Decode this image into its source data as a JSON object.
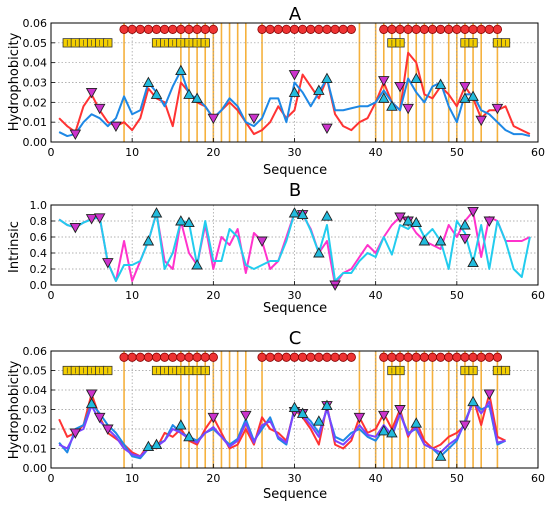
{
  "chart_data": [
    {
      "type": "line",
      "title": "A",
      "xlabel": "Sequence",
      "ylabel": "Hydrophobicity",
      "xlim": [
        0,
        60
      ],
      "ylim": [
        0,
        0.06
      ],
      "xticks": [
        "0",
        "10",
        "20",
        "30",
        "40",
        "50",
        "60"
      ],
      "yticks": [
        "0.00",
        "0.01",
        "0.02",
        "0.03",
        "0.04",
        "0.05",
        "0.06"
      ],
      "grid": true,
      "vlines": [
        9,
        16,
        17,
        18,
        19,
        20,
        21,
        22,
        23,
        24,
        26,
        38,
        40,
        41,
        42,
        43,
        44,
        45,
        46,
        47,
        49,
        50,
        51,
        52,
        53,
        55
      ],
      "helix_markers": [
        9,
        10,
        11,
        12,
        13,
        14,
        15,
        16,
        17,
        18,
        19,
        20,
        26,
        27,
        28,
        29,
        30,
        31,
        32,
        33,
        34,
        35,
        36,
        37,
        41,
        42,
        43,
        44,
        45,
        46,
        47,
        48,
        49,
        50,
        51,
        52,
        53,
        54,
        55
      ],
      "strand_markers": [
        2,
        3,
        4,
        5,
        6,
        7,
        13,
        14,
        15,
        16,
        17,
        18,
        19,
        42,
        43,
        51,
        52,
        55,
        56
      ],
      "x": [
        1,
        2,
        3,
        4,
        5,
        6,
        7,
        8,
        9,
        10,
        11,
        12,
        13,
        14,
        15,
        16,
        17,
        18,
        19,
        20,
        21,
        22,
        23,
        24,
        25,
        26,
        27,
        28,
        29,
        30,
        31,
        32,
        33,
        34,
        35,
        36,
        37,
        38,
        39,
        40,
        41,
        42,
        43,
        44,
        45,
        46,
        47,
        48,
        49,
        50,
        51,
        52,
        53,
        54,
        55,
        56,
        57,
        58,
        59
      ],
      "series": [
        {
          "color": "#ff3333",
          "values": [
            0.012,
            0.008,
            0.005,
            0.018,
            0.024,
            0.016,
            0.01,
            0.008,
            0.01,
            0.006,
            0.012,
            0.027,
            0.022,
            0.02,
            0.008,
            0.03,
            0.025,
            0.02,
            0.018,
            0.012,
            0.016,
            0.02,
            0.016,
            0.01,
            0.004,
            0.006,
            0.01,
            0.018,
            0.012,
            0.016,
            0.034,
            0.028,
            0.022,
            0.032,
            0.014,
            0.008,
            0.006,
            0.01,
            0.012,
            0.02,
            0.03,
            0.02,
            0.016,
            0.045,
            0.04,
            0.024,
            0.022,
            0.028,
            0.024,
            0.018,
            0.028,
            0.022,
            0.012,
            0.016,
            0.016,
            0.018,
            0.008,
            0.006,
            0.004
          ]
        },
        {
          "color": "#1e88e5",
          "values": [
            0.005,
            0.003,
            0.004,
            0.01,
            0.014,
            0.012,
            0.008,
            0.012,
            0.023,
            0.014,
            0.016,
            0.03,
            0.025,
            0.018,
            0.028,
            0.036,
            0.024,
            0.022,
            0.018,
            0.012,
            0.016,
            0.022,
            0.018,
            0.01,
            0.008,
            0.012,
            0.022,
            0.022,
            0.01,
            0.03,
            0.025,
            0.018,
            0.025,
            0.032,
            0.016,
            0.016,
            0.017,
            0.018,
            0.018,
            0.02,
            0.026,
            0.02,
            0.016,
            0.032,
            0.025,
            0.02,
            0.028,
            0.03,
            0.018,
            0.01,
            0.024,
            0.024,
            0.016,
            0.014,
            0.01,
            0.006,
            0.004,
            0.004,
            0.003
          ]
        }
      ],
      "down_triangles": {
        "x": [
          3,
          5,
          6,
          8,
          20,
          25,
          30,
          34,
          41,
          43,
          44,
          51,
          53,
          55
        ],
        "y": [
          0.004,
          0.025,
          0.017,
          0.008,
          0.012,
          0.012,
          0.034,
          0.007,
          0.031,
          0.028,
          0.017,
          0.028,
          0.011,
          0.017
        ]
      },
      "up_triangles": {
        "x": [
          12,
          13,
          16,
          17,
          18,
          30,
          33,
          34,
          41,
          42,
          45,
          48,
          51,
          52
        ],
        "y": [
          0.03,
          0.024,
          0.036,
          0.024,
          0.022,
          0.025,
          0.026,
          0.032,
          0.022,
          0.018,
          0.032,
          0.029,
          0.022,
          0.023
        ]
      }
    },
    {
      "type": "line",
      "title": "B",
      "xlabel": "Sequence",
      "ylabel": "Intrinsic",
      "xlim": [
        0,
        60
      ],
      "ylim": [
        0,
        1.0
      ],
      "xticks": [
        "0",
        "10",
        "20",
        "30",
        "40",
        "50",
        "60"
      ],
      "yticks": [
        "0.0",
        "0.2",
        "0.4",
        "0.6",
        "0.8",
        "1.0"
      ],
      "grid": true,
      "x": [
        1,
        2,
        3,
        4,
        5,
        6,
        7,
        8,
        9,
        10,
        11,
        12,
        13,
        14,
        15,
        16,
        17,
        18,
        19,
        20,
        21,
        22,
        23,
        24,
        25,
        26,
        27,
        28,
        29,
        30,
        31,
        32,
        33,
        34,
        35,
        36,
        37,
        38,
        39,
        40,
        41,
        42,
        43,
        44,
        45,
        46,
        47,
        48,
        49,
        50,
        51,
        52,
        53,
        54,
        55,
        56,
        57,
        58,
        59
      ],
      "series": [
        {
          "color": "#ff33cc",
          "values": [
            0.82,
            0.75,
            0.72,
            0.78,
            0.83,
            0.84,
            0.28,
            0.05,
            0.55,
            0.05,
            0.3,
            0.55,
            0.9,
            0.3,
            0.2,
            0.8,
            0.4,
            0.25,
            0.75,
            0.2,
            0.6,
            0.5,
            0.7,
            0.15,
            0.65,
            0.55,
            0.2,
            0.3,
            0.6,
            0.9,
            0.88,
            0.7,
            0.4,
            0.55,
            0.0,
            0.15,
            0.2,
            0.35,
            0.5,
            0.4,
            0.6,
            0.75,
            0.85,
            0.8,
            0.65,
            0.55,
            0.5,
            0.45,
            0.75,
            0.6,
            0.8,
            0.92,
            0.35,
            0.85,
            0.8,
            0.55,
            0.55,
            0.55,
            0.6
          ]
        },
        {
          "color": "#22ccee",
          "values": [
            0.82,
            0.75,
            0.72,
            0.78,
            0.82,
            0.85,
            0.28,
            0.05,
            0.25,
            0.25,
            0.3,
            0.55,
            0.9,
            0.2,
            0.4,
            0.8,
            0.78,
            0.25,
            0.8,
            0.3,
            0.3,
            0.7,
            0.6,
            0.25,
            0.2,
            0.25,
            0.3,
            0.3,
            0.55,
            0.9,
            0.9,
            0.68,
            0.4,
            0.75,
            0.05,
            0.15,
            0.15,
            0.3,
            0.4,
            0.35,
            0.6,
            0.38,
            0.75,
            0.7,
            0.8,
            0.6,
            0.7,
            0.55,
            0.2,
            0.8,
            0.65,
            0.28,
            0.75,
            0.2,
            0.8,
            0.55,
            0.2,
            0.1,
            0.6
          ]
        }
      ],
      "down_triangles": {
        "x": [
          3,
          5,
          6,
          7,
          26,
          31,
          35,
          43,
          44,
          51,
          52,
          54
        ],
        "y": [
          0.72,
          0.83,
          0.84,
          0.28,
          0.55,
          0.88,
          0.0,
          0.85,
          0.8,
          0.58,
          0.92,
          0.8
        ]
      },
      "up_triangles": {
        "x": [
          12,
          13,
          16,
          17,
          18,
          30,
          31,
          33,
          34,
          44,
          45,
          46,
          48,
          51,
          52
        ],
        "y": [
          0.55,
          0.9,
          0.8,
          0.78,
          0.25,
          0.9,
          0.88,
          0.4,
          0.86,
          0.8,
          0.78,
          0.55,
          0.55,
          0.75,
          0.28
        ]
      }
    },
    {
      "type": "line",
      "title": "C",
      "xlabel": "Sequence",
      "ylabel": "Hydrophobicity",
      "xlim": [
        0,
        60
      ],
      "ylim": [
        0,
        0.06
      ],
      "xticks": [
        "0",
        "10",
        "20",
        "30",
        "40",
        "50",
        "60"
      ],
      "yticks": [
        "0.00",
        "0.01",
        "0.02",
        "0.03",
        "0.04",
        "0.05",
        "0.06"
      ],
      "grid": true,
      "vlines": [
        9,
        16,
        17,
        18,
        19,
        20,
        21,
        22,
        23,
        24,
        26,
        38,
        40,
        41,
        42,
        43,
        44,
        45,
        46,
        47,
        49,
        50,
        51,
        52,
        53,
        55
      ],
      "helix_markers": [
        9,
        10,
        11,
        12,
        13,
        14,
        15,
        16,
        17,
        18,
        19,
        20,
        26,
        27,
        28,
        29,
        30,
        31,
        32,
        33,
        34,
        35,
        36,
        37,
        41,
        42,
        43,
        44,
        45,
        46,
        47,
        48,
        49,
        50,
        51,
        52,
        53,
        54,
        55
      ],
      "strand_markers": [
        2,
        3,
        4,
        5,
        6,
        7,
        13,
        14,
        15,
        16,
        17,
        18,
        19,
        42,
        43,
        51,
        52,
        55,
        56
      ],
      "x": [
        1,
        2,
        3,
        4,
        5,
        6,
        7,
        8,
        9,
        10,
        11,
        12,
        13,
        14,
        15,
        16,
        17,
        18,
        19,
        20,
        21,
        22,
        23,
        24,
        25,
        26,
        27,
        28,
        29,
        30,
        31,
        32,
        33,
        34,
        35,
        36,
        37,
        38,
        39,
        40,
        41,
        42,
        43,
        44,
        45,
        46,
        47,
        48,
        49,
        50,
        51,
        52,
        53,
        54,
        55,
        56
      ],
      "series": [
        {
          "color": "#ff3333",
          "values": [
            0.025,
            0.016,
            0.018,
            0.022,
            0.038,
            0.026,
            0.018,
            0.015,
            0.012,
            0.008,
            0.006,
            0.012,
            0.01,
            0.018,
            0.016,
            0.02,
            0.014,
            0.012,
            0.02,
            0.026,
            0.018,
            0.01,
            0.012,
            0.02,
            0.012,
            0.026,
            0.02,
            0.018,
            0.014,
            0.03,
            0.026,
            0.02,
            0.012,
            0.032,
            0.012,
            0.01,
            0.014,
            0.026,
            0.018,
            0.02,
            0.028,
            0.02,
            0.03,
            0.016,
            0.024,
            0.014,
            0.01,
            0.012,
            0.016,
            0.018,
            0.022,
            0.036,
            0.022,
            0.038,
            0.016,
            0.014
          ]
        },
        {
          "color": "#1e88e5",
          "values": [
            0.013,
            0.008,
            0.02,
            0.022,
            0.033,
            0.028,
            0.022,
            0.018,
            0.012,
            0.006,
            0.005,
            0.01,
            0.012,
            0.014,
            0.022,
            0.018,
            0.016,
            0.014,
            0.018,
            0.02,
            0.016,
            0.012,
            0.015,
            0.025,
            0.014,
            0.02,
            0.026,
            0.015,
            0.012,
            0.031,
            0.028,
            0.024,
            0.018,
            0.03,
            0.016,
            0.014,
            0.018,
            0.02,
            0.016,
            0.014,
            0.02,
            0.016,
            0.028,
            0.018,
            0.02,
            0.012,
            0.01,
            0.006,
            0.01,
            0.014,
            0.024,
            0.034,
            0.03,
            0.032,
            0.012,
            0.014
          ]
        },
        {
          "color": "#7a44ff",
          "values": [
            0.012,
            0.01,
            0.018,
            0.02,
            0.032,
            0.024,
            0.02,
            0.016,
            0.01,
            0.007,
            0.006,
            0.01,
            0.011,
            0.014,
            0.02,
            0.018,
            0.015,
            0.013,
            0.018,
            0.021,
            0.016,
            0.011,
            0.014,
            0.023,
            0.013,
            0.022,
            0.024,
            0.016,
            0.013,
            0.03,
            0.027,
            0.022,
            0.016,
            0.031,
            0.014,
            0.012,
            0.016,
            0.022,
            0.017,
            0.016,
            0.022,
            0.017,
            0.028,
            0.017,
            0.021,
            0.012,
            0.01,
            0.008,
            0.012,
            0.015,
            0.023,
            0.034,
            0.028,
            0.034,
            0.013,
            0.014
          ]
        }
      ],
      "down_triangles": {
        "x": [
          3,
          5,
          6,
          7,
          20,
          24,
          30,
          31,
          34,
          38,
          41,
          43,
          51,
          54
        ],
        "y": [
          0.018,
          0.038,
          0.026,
          0.02,
          0.026,
          0.027,
          0.029,
          0.028,
          0.032,
          0.026,
          0.027,
          0.03,
          0.022,
          0.038
        ]
      },
      "up_triangles": {
        "x": [
          5,
          12,
          13,
          16,
          17,
          30,
          31,
          33,
          34,
          41,
          42,
          45,
          48,
          52
        ],
        "y": [
          0.033,
          0.011,
          0.012,
          0.022,
          0.016,
          0.031,
          0.028,
          0.024,
          0.032,
          0.019,
          0.018,
          0.023,
          0.006,
          0.034
        ]
      }
    }
  ]
}
